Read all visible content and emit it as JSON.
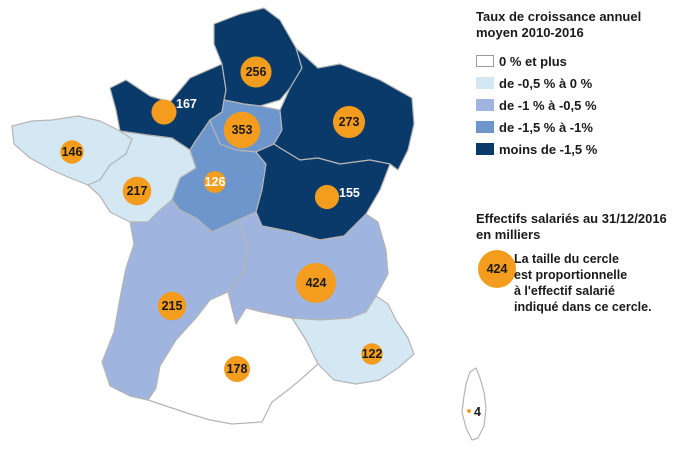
{
  "legend": {
    "title_line1": "Taux de croissance annuel",
    "title_line2": "moyen 2010-2016",
    "classes": [
      {
        "label": "0 % et plus",
        "color": "#ffffff",
        "border": "#9a9a9a"
      },
      {
        "label": "de -0,5 % à 0 %",
        "color": "#d4e8f4",
        "border": "#d4e8f4"
      },
      {
        "label": "de -1 % à -0,5 %",
        "color": "#9fb4de",
        "border": "#9fb4de"
      },
      {
        "label": "de -1,5 % à -1%",
        "color": "#6d96cc",
        "border": "#6d96cc"
      },
      {
        "label": "moins de -1,5 %",
        "color": "#0a3a6a",
        "border": "#0a3a6a"
      }
    ]
  },
  "size_legend": {
    "title_line1": "Effectifs salariés au 31/12/2016",
    "title_line2": "en milliers",
    "example_value": "424",
    "note_lines": [
      "La taille du cercle",
      "est proportionnelle",
      "à l'effectif salarié",
      "indiqué dans ce cercle."
    ]
  },
  "regions": [
    {
      "id": "hauts-de-france",
      "value": "256",
      "class": 4
    },
    {
      "id": "normandie",
      "value": "167",
      "class": 4
    },
    {
      "id": "ile-de-france",
      "value": "353",
      "class": 3
    },
    {
      "id": "grand-est",
      "value": "273",
      "class": 4
    },
    {
      "id": "bretagne",
      "value": "146",
      "class": 1
    },
    {
      "id": "pays-de-la-loire",
      "value": "217",
      "class": 1
    },
    {
      "id": "centre-val-de-loire",
      "value": "126",
      "class": 3
    },
    {
      "id": "bourgogne-franche-comte",
      "value": "155",
      "class": 4
    },
    {
      "id": "nouvelle-aquitaine",
      "value": "215",
      "class": 2
    },
    {
      "id": "auvergne-rhone-alpes",
      "value": "424",
      "class": 2
    },
    {
      "id": "occitanie",
      "value": "178",
      "class": 0
    },
    {
      "id": "provence-alpes-cote-d-azur",
      "value": "122",
      "class": 1
    },
    {
      "id": "corse",
      "value": "4",
      "class": 0
    }
  ]
}
